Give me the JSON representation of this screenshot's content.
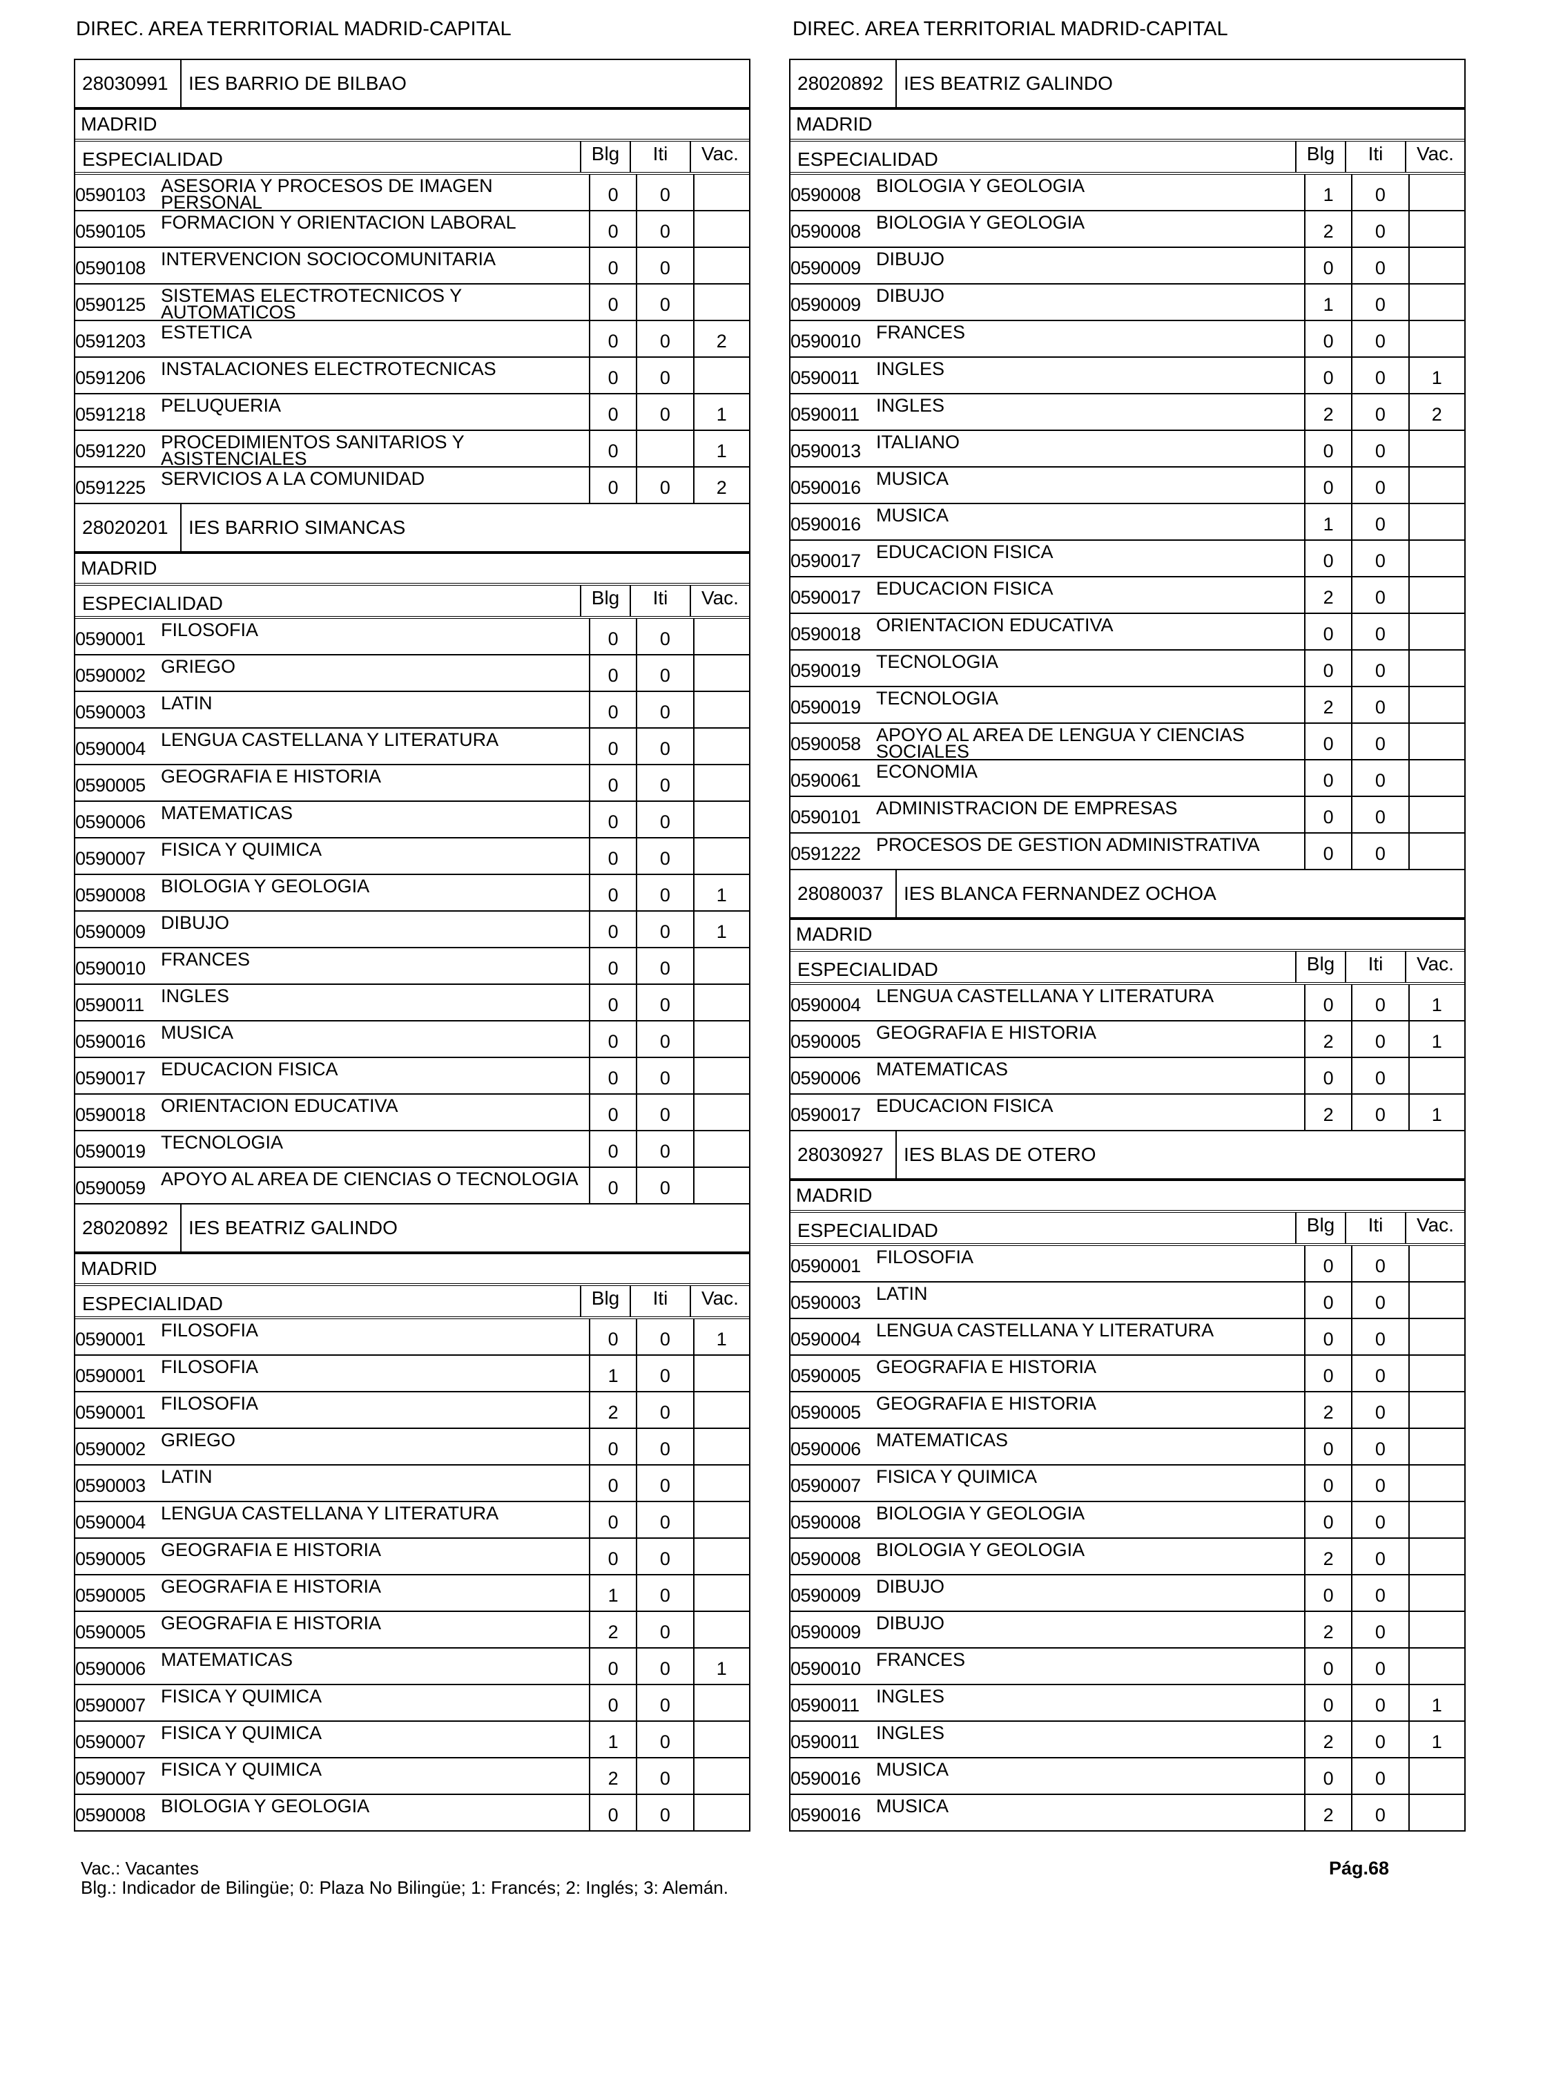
{
  "header": {
    "left_title": "DIREC.  AREA TERRITORIAL MADRID-CAPITAL",
    "right_title": "DIREC.  AREA TERRITORIAL MADRID-CAPITAL"
  },
  "table_headers": {
    "especialidad": "ESPECIALIDAD",
    "blg": "Blg",
    "iti": "Iti",
    "vac": "Vac."
  },
  "columns": {
    "left": [
      {
        "code": "28030991",
        "name": "IES BARRIO DE BILBAO",
        "city": "MADRID",
        "rows": [
          [
            "0590103",
            "ASESORIA Y PROCESOS DE IMAGEN PERSONAL",
            "0",
            "0",
            ""
          ],
          [
            "0590105",
            "FORMACION Y ORIENTACION LABORAL",
            "0",
            "0",
            ""
          ],
          [
            "0590108",
            "INTERVENCION SOCIOCOMUNITARIA",
            "0",
            "0",
            ""
          ],
          [
            "0590125",
            "SISTEMAS ELECTROTECNICOS Y AUTOMATICOS",
            "0",
            "0",
            ""
          ],
          [
            "0591203",
            "ESTETICA",
            "0",
            "0",
            "2"
          ],
          [
            "0591206",
            "INSTALACIONES ELECTROTECNICAS",
            "0",
            "0",
            ""
          ],
          [
            "0591218",
            "PELUQUERIA",
            "0",
            "0",
            "1"
          ],
          [
            "0591220",
            "PROCEDIMIENTOS SANITARIOS Y ASISTENCIALES",
            "0",
            "",
            "1"
          ],
          [
            "0591225",
            "SERVICIOS A LA COMUNIDAD",
            "0",
            "0",
            "2"
          ]
        ]
      },
      {
        "code": "28020201",
        "name": "IES BARRIO SIMANCAS",
        "city": "MADRID",
        "rows": [
          [
            "0590001",
            "FILOSOFIA",
            "0",
            "0",
            ""
          ],
          [
            "0590002",
            "GRIEGO",
            "0",
            "0",
            ""
          ],
          [
            "0590003",
            "LATIN",
            "0",
            "0",
            ""
          ],
          [
            "0590004",
            "LENGUA CASTELLANA Y LITERATURA",
            "0",
            "0",
            ""
          ],
          [
            "0590005",
            "GEOGRAFIA E HISTORIA",
            "0",
            "0",
            ""
          ],
          [
            "0590006",
            "MATEMATICAS",
            "0",
            "0",
            ""
          ],
          [
            "0590007",
            "FISICA Y QUIMICA",
            "0",
            "0",
            ""
          ],
          [
            "0590008",
            "BIOLOGIA Y GEOLOGIA",
            "0",
            "0",
            "1"
          ],
          [
            "0590009",
            "DIBUJO",
            "0",
            "0",
            "1"
          ],
          [
            "0590010",
            "FRANCES",
            "0",
            "0",
            ""
          ],
          [
            "0590011",
            "INGLES",
            "0",
            "0",
            ""
          ],
          [
            "0590016",
            "MUSICA",
            "0",
            "0",
            ""
          ],
          [
            "0590017",
            "EDUCACION FISICA",
            "0",
            "0",
            ""
          ],
          [
            "0590018",
            "ORIENTACION EDUCATIVA",
            "0",
            "0",
            ""
          ],
          [
            "0590019",
            "TECNOLOGIA",
            "0",
            "0",
            ""
          ],
          [
            "0590059",
            "APOYO AL AREA DE CIENCIAS O TECNOLOGIA",
            "0",
            "0",
            ""
          ]
        ]
      },
      {
        "code": "28020892",
        "name": "IES BEATRIZ GALINDO",
        "city": "MADRID",
        "rows": [
          [
            "0590001",
            "FILOSOFIA",
            "0",
            "0",
            "1"
          ],
          [
            "0590001",
            "FILOSOFIA",
            "1",
            "0",
            ""
          ],
          [
            "0590001",
            "FILOSOFIA",
            "2",
            "0",
            ""
          ],
          [
            "0590002",
            "GRIEGO",
            "0",
            "0",
            ""
          ],
          [
            "0590003",
            "LATIN",
            "0",
            "0",
            ""
          ],
          [
            "0590004",
            "LENGUA CASTELLANA Y LITERATURA",
            "0",
            "0",
            ""
          ],
          [
            "0590005",
            "GEOGRAFIA E HISTORIA",
            "0",
            "0",
            ""
          ],
          [
            "0590005",
            "GEOGRAFIA E HISTORIA",
            "1",
            "0",
            ""
          ],
          [
            "0590005",
            "GEOGRAFIA E HISTORIA",
            "2",
            "0",
            ""
          ],
          [
            "0590006",
            "MATEMATICAS",
            "0",
            "0",
            "1"
          ],
          [
            "0590007",
            "FISICA Y QUIMICA",
            "0",
            "0",
            ""
          ],
          [
            "0590007",
            "FISICA Y QUIMICA",
            "1",
            "0",
            ""
          ],
          [
            "0590007",
            "FISICA Y QUIMICA",
            "2",
            "0",
            ""
          ],
          [
            "0590008",
            "BIOLOGIA Y GEOLOGIA",
            "0",
            "0",
            ""
          ]
        ]
      }
    ],
    "right": [
      {
        "code": "28020892",
        "name": "IES BEATRIZ GALINDO",
        "city": "MADRID",
        "rows": [
          [
            "0590008",
            "BIOLOGIA Y GEOLOGIA",
            "1",
            "0",
            ""
          ],
          [
            "0590008",
            "BIOLOGIA Y GEOLOGIA",
            "2",
            "0",
            ""
          ],
          [
            "0590009",
            "DIBUJO",
            "0",
            "0",
            ""
          ],
          [
            "0590009",
            "DIBUJO",
            "1",
            "0",
            ""
          ],
          [
            "0590010",
            "FRANCES",
            "0",
            "0",
            ""
          ],
          [
            "0590011",
            "INGLES",
            "0",
            "0",
            "1"
          ],
          [
            "0590011",
            "INGLES",
            "2",
            "0",
            "2"
          ],
          [
            "0590013",
            "ITALIANO",
            "0",
            "0",
            ""
          ],
          [
            "0590016",
            "MUSICA",
            "0",
            "0",
            ""
          ],
          [
            "0590016",
            "MUSICA",
            "1",
            "0",
            ""
          ],
          [
            "0590017",
            "EDUCACION FISICA",
            "0",
            "0",
            ""
          ],
          [
            "0590017",
            "EDUCACION FISICA",
            "2",
            "0",
            ""
          ],
          [
            "0590018",
            "ORIENTACION EDUCATIVA",
            "0",
            "0",
            ""
          ],
          [
            "0590019",
            "TECNOLOGIA",
            "0",
            "0",
            ""
          ],
          [
            "0590019",
            "TECNOLOGIA",
            "2",
            "0",
            ""
          ],
          [
            "0590058",
            "APOYO AL AREA DE LENGUA Y CIENCIAS SOCIALES",
            "0",
            "0",
            ""
          ],
          [
            "0590061",
            "ECONOMIA",
            "0",
            "0",
            ""
          ],
          [
            "0590101",
            "ADMINISTRACION DE EMPRESAS",
            "0",
            "0",
            ""
          ],
          [
            "0591222",
            "PROCESOS DE GESTION ADMINISTRATIVA",
            "0",
            "0",
            ""
          ]
        ]
      },
      {
        "code": "28080037",
        "name": "IES BLANCA FERNANDEZ OCHOA",
        "city": "MADRID",
        "rows": [
          [
            "0590004",
            "LENGUA CASTELLANA Y LITERATURA",
            "0",
            "0",
            "1"
          ],
          [
            "0590005",
            "GEOGRAFIA E HISTORIA",
            "2",
            "0",
            "1"
          ],
          [
            "0590006",
            "MATEMATICAS",
            "0",
            "0",
            ""
          ],
          [
            "0590017",
            "EDUCACION FISICA",
            "2",
            "0",
            "1"
          ]
        ]
      },
      {
        "code": "28030927",
        "name": "IES BLAS DE OTERO",
        "city": "MADRID",
        "rows": [
          [
            "0590001",
            "FILOSOFIA",
            "0",
            "0",
            ""
          ],
          [
            "0590003",
            "LATIN",
            "0",
            "0",
            ""
          ],
          [
            "0590004",
            "LENGUA CASTELLANA Y LITERATURA",
            "0",
            "0",
            ""
          ],
          [
            "0590005",
            "GEOGRAFIA E HISTORIA",
            "0",
            "0",
            ""
          ],
          [
            "0590005",
            "GEOGRAFIA E HISTORIA",
            "2",
            "0",
            ""
          ],
          [
            "0590006",
            "MATEMATICAS",
            "0",
            "0",
            ""
          ],
          [
            "0590007",
            "FISICA Y QUIMICA",
            "0",
            "0",
            ""
          ],
          [
            "0590008",
            "BIOLOGIA Y GEOLOGIA",
            "0",
            "0",
            ""
          ],
          [
            "0590008",
            "BIOLOGIA Y GEOLOGIA",
            "2",
            "0",
            ""
          ],
          [
            "0590009",
            "DIBUJO",
            "0",
            "0",
            ""
          ],
          [
            "0590009",
            "DIBUJO",
            "2",
            "0",
            ""
          ],
          [
            "0590010",
            "FRANCES",
            "0",
            "0",
            ""
          ],
          [
            "0590011",
            "INGLES",
            "0",
            "0",
            "1"
          ],
          [
            "0590011",
            "INGLES",
            "2",
            "0",
            "1"
          ],
          [
            "0590016",
            "MUSICA",
            "0",
            "0",
            ""
          ],
          [
            "0590016",
            "MUSICA",
            "2",
            "0",
            ""
          ]
        ]
      }
    ]
  },
  "footer": {
    "legend_vac": "Vac.: Vacantes",
    "legend_blg": "Blg.: Indicador de Bilingüe; 0: Plaza No Bilingüe; 1: Francés; 2: Inglés; 3: Alemán.",
    "page": "Pág.68"
  }
}
